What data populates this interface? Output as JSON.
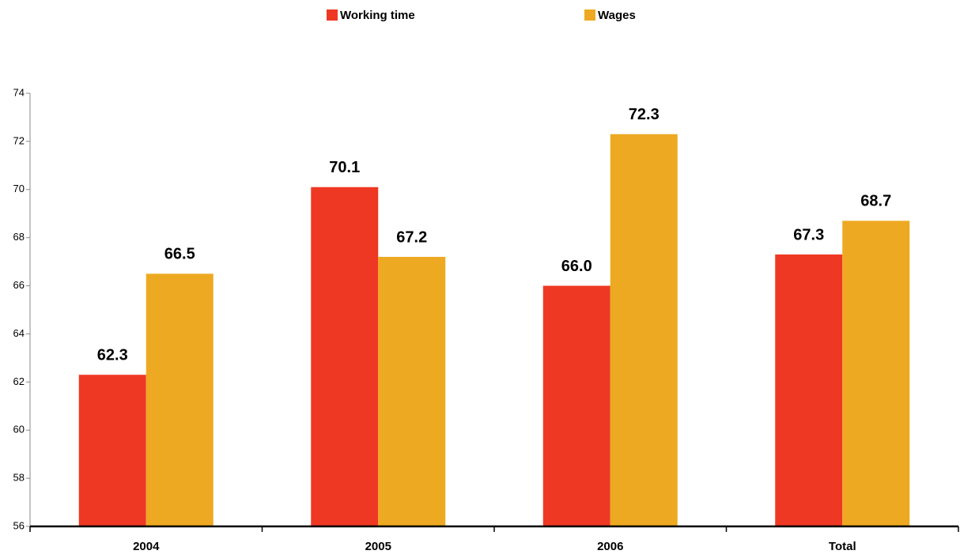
{
  "chart_data": {
    "type": "bar",
    "categories": [
      "2004",
      "2005",
      "2006",
      "Total"
    ],
    "series": [
      {
        "name": "Working time",
        "color": "#ee3823",
        "values": [
          62.3,
          70.1,
          66,
          67.3
        ],
        "value_labels": [
          "62.3",
          "70.1",
          "66.0",
          "67.3"
        ]
      },
      {
        "name": "Wages",
        "color": "#eda921",
        "values": [
          66.5,
          67.2,
          72.3,
          68.7
        ]
      }
    ],
    "ylim": [
      56,
      74
    ],
    "yticks": [
      56,
      58,
      60,
      62,
      64,
      66,
      68,
      70,
      72,
      74
    ]
  }
}
